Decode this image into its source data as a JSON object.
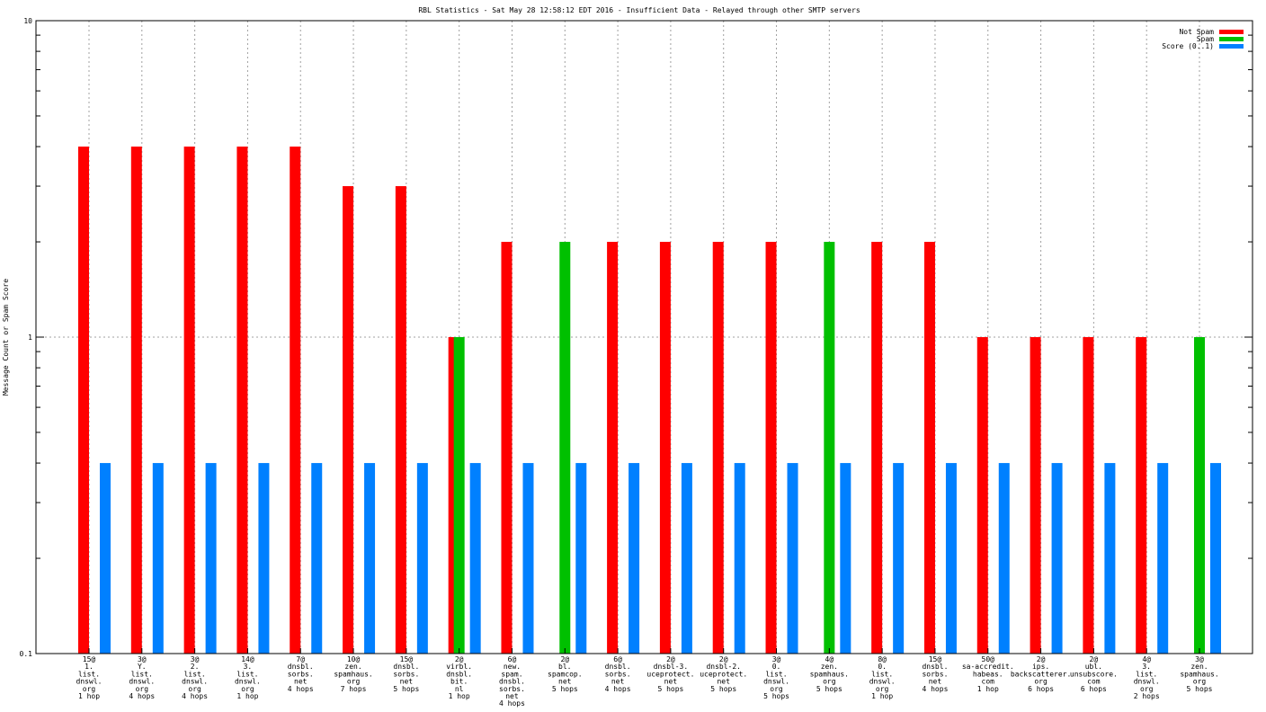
{
  "chart_data": {
    "type": "bar",
    "title": "RBL Statistics - Sat May 28 12:58:12 EDT 2016 - Insufficient Data - Relayed through other SMTP servers",
    "xlabel": "",
    "ylabel": "Message Count or Spam Score",
    "yscale": "log",
    "ylim": [
      0.1,
      10
    ],
    "yticks": [
      "0.1",
      "1",
      "10"
    ],
    "grid": true,
    "legend_position": "top-right",
    "colors": {
      "not_spam": "#ff0000",
      "spam": "#00c000",
      "score": "#0080ff"
    },
    "categories": [
      [
        "15@",
        "1.",
        "list.",
        "dnswl.",
        "org",
        "1 hop"
      ],
      [
        "3@",
        "Y.",
        "list.",
        "dnswl.",
        "org",
        "4 hops"
      ],
      [
        "3@",
        "2.",
        "list.",
        "dnswl.",
        "org",
        "4 hops"
      ],
      [
        "14@",
        "3.",
        "list.",
        "dnswl.",
        "org",
        "1 hop"
      ],
      [
        "7@",
        "dnsbl.",
        "sorbs.",
        "net",
        "4 hops"
      ],
      [
        "10@",
        "zen.",
        "spamhaus.",
        "org",
        "7 hops"
      ],
      [
        "15@",
        "dnsbl.",
        "sorbs.",
        "net",
        "5 hops"
      ],
      [
        "2@",
        "virbl.",
        "dnsbl.",
        "bit.",
        "nl",
        "1 hop"
      ],
      [
        "6@",
        "new.",
        "spam.",
        "dnsbl.",
        "sorbs.",
        "net",
        "4 hops"
      ],
      [
        "2@",
        "bl.",
        "spamcop.",
        "net",
        "5 hops"
      ],
      [
        "6@",
        "dnsbl.",
        "sorbs.",
        "net",
        "4 hops"
      ],
      [
        "2@",
        "dnsbl-3.",
        "uceprotect.",
        "net",
        "5 hops"
      ],
      [
        "2@",
        "dnsbl-2.",
        "uceprotect.",
        "net",
        "5 hops"
      ],
      [
        "3@",
        "0.",
        "list.",
        "dnswl.",
        "org",
        "5 hops"
      ],
      [
        "4@",
        "zen.",
        "spamhaus.",
        "org",
        "5 hops"
      ],
      [
        "8@",
        "0.",
        "list.",
        "dnswl.",
        "org",
        "1 hop"
      ],
      [
        "15@",
        "dnsbl.",
        "sorbs.",
        "net",
        "4 hops"
      ],
      [
        "50@",
        "sa-accredit.",
        "habeas.",
        "com",
        "1 hop"
      ],
      [
        "2@",
        "ips.",
        "backscatterer.",
        "org",
        "6 hops"
      ],
      [
        "2@",
        "ubl.",
        "unsubscore.",
        "com",
        "6 hops"
      ],
      [
        "4@",
        "3.",
        "list.",
        "dnswl.",
        "org",
        "2 hops"
      ],
      [
        "3@",
        "zen.",
        "spamhaus.",
        "org",
        "5 hops"
      ]
    ],
    "series": [
      {
        "name": "Not Spam",
        "values": [
          4,
          4,
          4,
          4,
          4,
          3,
          3,
          1,
          2,
          null,
          2,
          2,
          2,
          2,
          null,
          2,
          2,
          1,
          1,
          1,
          1,
          null
        ]
      },
      {
        "name": "Spam",
        "values": [
          null,
          null,
          null,
          null,
          null,
          null,
          null,
          1,
          null,
          2,
          null,
          null,
          null,
          null,
          2,
          null,
          null,
          null,
          null,
          null,
          null,
          1
        ]
      },
      {
        "name": "Score (0..1)",
        "values": [
          0.4,
          0.4,
          0.4,
          0.4,
          0.4,
          0.4,
          0.4,
          0.4,
          0.4,
          0.4,
          0.4,
          0.4,
          0.4,
          0.4,
          0.4,
          0.4,
          0.4,
          0.4,
          0.4,
          0.4,
          0.4,
          0.4
        ]
      }
    ]
  }
}
